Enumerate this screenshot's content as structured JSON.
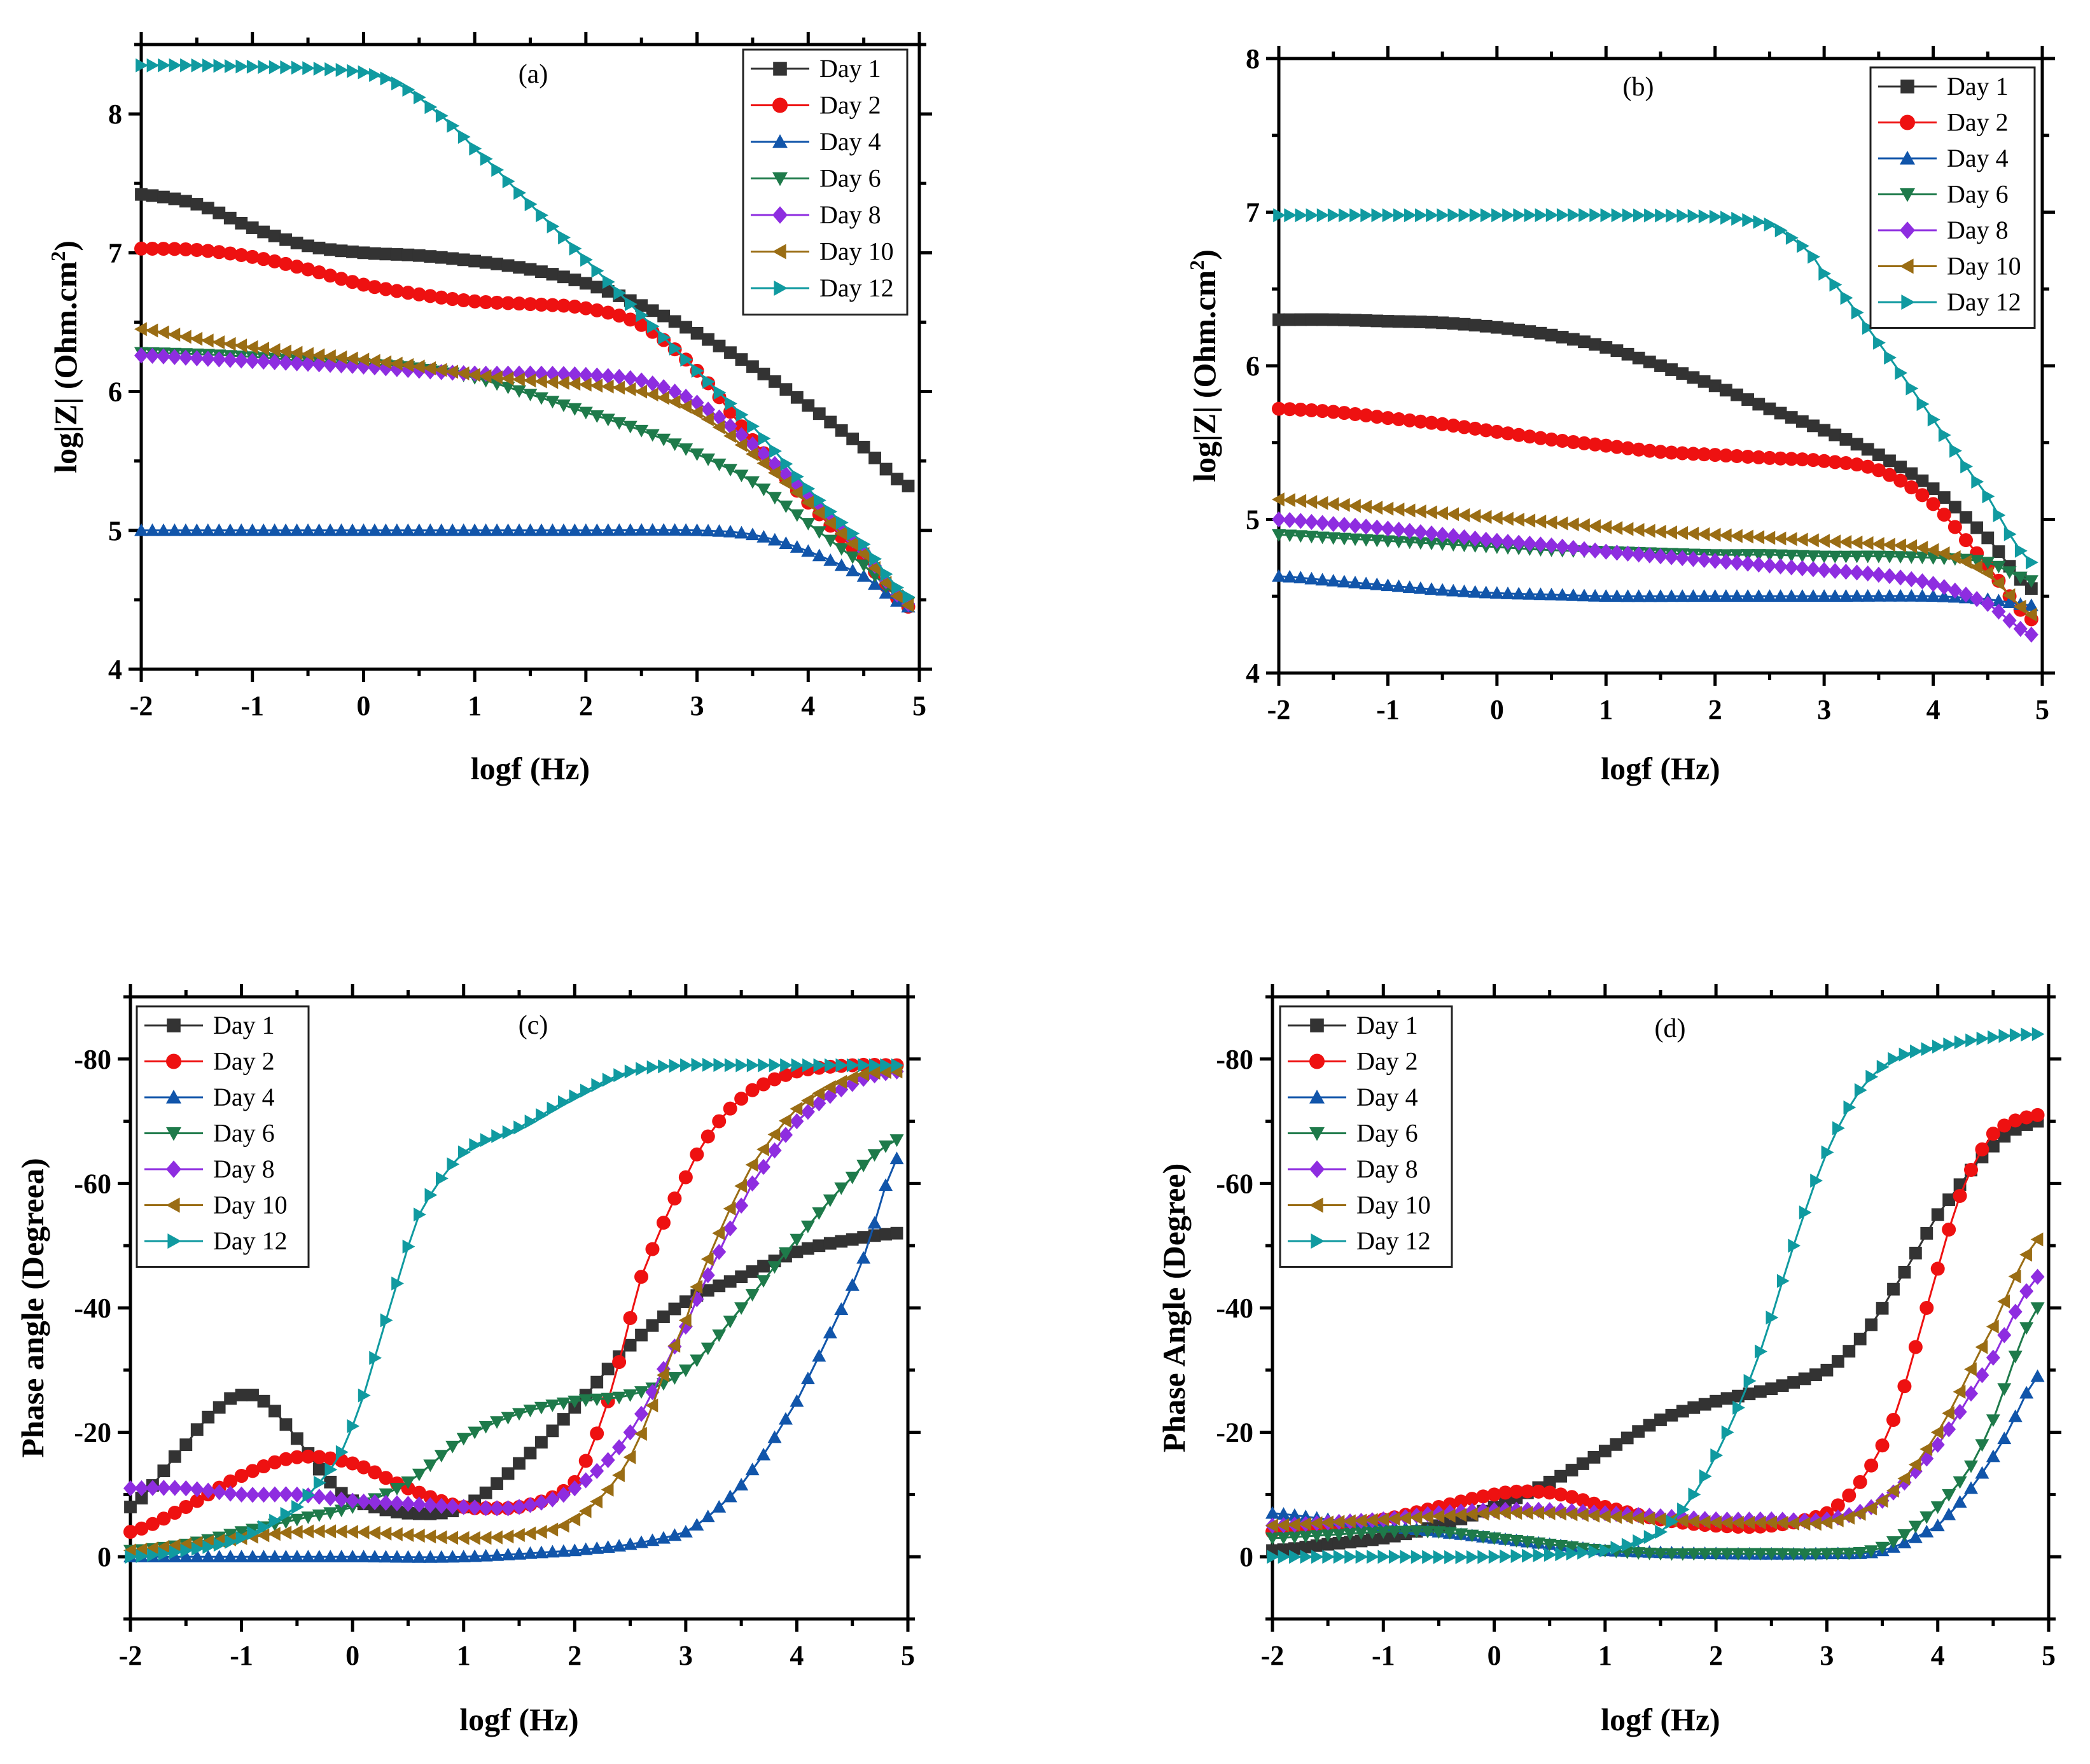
{
  "colors": {
    "Day 1": "#333333",
    "Day 2": "#ee1111",
    "Day 4": "#1155aa",
    "Day 6": "#1e7a4a",
    "Day 8": "#8e2de0",
    "Day 10": "#9a6d14",
    "Day 12": "#109aa0"
  },
  "markers": {
    "Day 1": "square",
    "Day 2": "circle",
    "Day 4": "triangle-up",
    "Day 6": "triangle-down",
    "Day 8": "diamond",
    "Day 10": "triangle-left",
    "Day 12": "triangle-right"
  },
  "chart_data": [
    {
      "id": "a",
      "type": "line",
      "title": "(a)",
      "xlabel": "logf (Hz)",
      "ylabel_main": "log|Z| (Ohm.cm",
      "ylabel_sup": "2",
      "ylabel_end": ")",
      "xlim": [
        -2,
        5
      ],
      "ylim": [
        4,
        8.5
      ],
      "xticks": [
        -2,
        -1,
        0,
        1,
        2,
        3,
        4,
        5
      ],
      "yticks": [
        4,
        5,
        6,
        7,
        8
      ],
      "legend_position": "top-right",
      "series": [
        {
          "name": "Day 1",
          "x": [
            -2,
            -1.5,
            -1,
            -0.5,
            0,
            0.5,
            1,
            1.5,
            2,
            2.5,
            3,
            3.5,
            4,
            4.5,
            4.9
          ],
          "y": [
            7.42,
            7.35,
            7.18,
            7.05,
            7.0,
            6.98,
            6.94,
            6.88,
            6.78,
            6.62,
            6.42,
            6.18,
            5.9,
            5.6,
            5.32
          ]
        },
        {
          "name": "Day 2",
          "x": [
            -2,
            -1.5,
            -1,
            -0.5,
            0,
            0.5,
            1,
            1.5,
            2,
            2.5,
            3,
            3.5,
            4,
            4.5,
            4.9
          ],
          "y": [
            7.03,
            7.02,
            6.97,
            6.88,
            6.77,
            6.7,
            6.65,
            6.63,
            6.6,
            6.48,
            6.15,
            5.65,
            5.2,
            4.8,
            4.45
          ]
        },
        {
          "name": "Day 4",
          "x": [
            -2,
            -1,
            0,
            1,
            2,
            3,
            3.5,
            4,
            4.5,
            4.9
          ],
          "y": [
            5.0,
            5.0,
            5.0,
            5.0,
            5.0,
            5.0,
            4.97,
            4.85,
            4.67,
            4.45
          ]
        },
        {
          "name": "Day 6",
          "x": [
            -2,
            -1.5,
            -1,
            -0.5,
            0,
            0.5,
            1,
            1.5,
            2,
            2.5,
            3,
            3.5,
            4,
            4.5,
            4.9
          ],
          "y": [
            6.28,
            6.27,
            6.25,
            6.22,
            6.2,
            6.17,
            6.1,
            5.98,
            5.85,
            5.72,
            5.55,
            5.35,
            5.05,
            4.75,
            4.48
          ]
        },
        {
          "name": "Day 8",
          "x": [
            -2,
            -1.5,
            -1,
            -0.5,
            0,
            0.5,
            1,
            1.5,
            2,
            2.5,
            3,
            3.5,
            4,
            4.5,
            4.9
          ],
          "y": [
            6.26,
            6.24,
            6.22,
            6.2,
            6.18,
            6.15,
            6.13,
            6.13,
            6.12,
            6.08,
            5.92,
            5.62,
            5.25,
            4.85,
            4.47
          ]
        },
        {
          "name": "Day 10",
          "x": [
            -2,
            -1.5,
            -1,
            -0.5,
            0,
            0.5,
            1,
            1.5,
            2,
            2.5,
            3,
            3.5,
            4,
            4.5,
            4.9
          ],
          "y": [
            6.45,
            6.38,
            6.32,
            6.27,
            6.23,
            6.18,
            6.12,
            6.08,
            6.05,
            6.0,
            5.85,
            5.55,
            5.2,
            4.83,
            4.46
          ]
        },
        {
          "name": "Day 12",
          "x": [
            -2,
            -1.5,
            -1,
            -0.5,
            0,
            0.3,
            0.6,
            1,
            1.5,
            2,
            2.5,
            3,
            3.5,
            4,
            4.5,
            4.9
          ],
          "y": [
            8.35,
            8.35,
            8.34,
            8.33,
            8.3,
            8.22,
            8.05,
            7.75,
            7.35,
            6.95,
            6.55,
            6.15,
            5.75,
            5.3,
            4.9,
            4.52
          ]
        }
      ]
    },
    {
      "id": "b",
      "type": "line",
      "title": "(b)",
      "xlabel": "logf (Hz)",
      "ylabel_main": "log|Z| (Ohm.cm",
      "ylabel_sup": "2",
      "ylabel_end": ")",
      "xlim": [
        -2,
        5
      ],
      "ylim": [
        4,
        8
      ],
      "xticks": [
        -2,
        -1,
        0,
        1,
        2,
        3,
        4,
        5
      ],
      "yticks": [
        4,
        5,
        6,
        7,
        8
      ],
      "legend_position": "top-right",
      "series": [
        {
          "name": "Day 1",
          "x": [
            -2,
            -1.5,
            -1,
            -0.5,
            0,
            0.5,
            1,
            1.5,
            2,
            2.5,
            3,
            3.5,
            4,
            4.5,
            4.9
          ],
          "y": [
            6.3,
            6.3,
            6.29,
            6.28,
            6.25,
            6.2,
            6.12,
            6.0,
            5.87,
            5.72,
            5.58,
            5.42,
            5.2,
            4.88,
            4.55
          ]
        },
        {
          "name": "Day 2",
          "x": [
            -2,
            -1.5,
            -1,
            -0.5,
            0,
            0.5,
            1,
            1.5,
            2,
            2.5,
            3,
            3.5,
            4,
            4.5,
            4.9
          ],
          "y": [
            5.72,
            5.7,
            5.66,
            5.62,
            5.57,
            5.52,
            5.48,
            5.44,
            5.42,
            5.4,
            5.38,
            5.32,
            5.1,
            4.7,
            4.35
          ]
        },
        {
          "name": "Day 4",
          "x": [
            -2,
            -1.5,
            -1,
            -0.5,
            0,
            0.5,
            1,
            2,
            3,
            4,
            4.5,
            4.9
          ],
          "y": [
            4.63,
            4.6,
            4.57,
            4.54,
            4.52,
            4.51,
            4.5,
            4.5,
            4.5,
            4.5,
            4.48,
            4.44
          ]
        },
        {
          "name": "Day 6",
          "x": [
            -2,
            -1.5,
            -1,
            -0.5,
            0,
            0.5,
            1,
            1.5,
            2,
            2.5,
            3,
            3.5,
            4,
            4.5,
            4.9
          ],
          "y": [
            4.9,
            4.88,
            4.86,
            4.84,
            4.82,
            4.8,
            4.79,
            4.78,
            4.77,
            4.77,
            4.76,
            4.76,
            4.75,
            4.72,
            4.6
          ]
        },
        {
          "name": "Day 8",
          "x": [
            -2,
            -1.5,
            -1,
            -0.5,
            0,
            0.5,
            1,
            1.5,
            2,
            2.5,
            3,
            3.5,
            4,
            4.5,
            4.9
          ],
          "y": [
            5.0,
            4.97,
            4.94,
            4.9,
            4.86,
            4.83,
            4.79,
            4.76,
            4.73,
            4.7,
            4.67,
            4.64,
            4.58,
            4.45,
            4.25
          ]
        },
        {
          "name": "Day 10",
          "x": [
            -2,
            -1.5,
            -1,
            -0.5,
            0,
            0.5,
            1,
            1.5,
            2,
            2.5,
            3,
            3.5,
            4,
            4.5,
            4.9
          ],
          "y": [
            5.13,
            5.1,
            5.07,
            5.04,
            5.01,
            4.98,
            4.95,
            4.92,
            4.9,
            4.88,
            4.86,
            4.84,
            4.8,
            4.65,
            4.38
          ]
        },
        {
          "name": "Day 12",
          "x": [
            -2,
            -1,
            0,
            1,
            2,
            2.5,
            2.8,
            3,
            3.5,
            4,
            4.5,
            4.9
          ],
          "y": [
            6.98,
            6.98,
            6.98,
            6.98,
            6.97,
            6.92,
            6.78,
            6.6,
            6.15,
            5.65,
            5.15,
            4.72
          ]
        }
      ]
    },
    {
      "id": "c",
      "type": "line",
      "title": "(c)",
      "xlabel": "logf (Hz)",
      "ylabel_main": "Phase angle (Degreea)",
      "ylabel_sup": "",
      "ylabel_end": "",
      "xlim": [
        -2,
        5
      ],
      "ylim": [
        10,
        -90
      ],
      "xticks": [
        -2,
        -1,
        0,
        1,
        2,
        3,
        4,
        5
      ],
      "yticks": [
        0,
        -20,
        -40,
        -60,
        -80
      ],
      "legend_position": "top-left",
      "series": [
        {
          "name": "Day 1",
          "x": [
            -2,
            -1.5,
            -1.2,
            -1,
            -0.8,
            -0.5,
            -0.2,
            0,
            0.5,
            1,
            1.5,
            2,
            2.5,
            3,
            3.5,
            4,
            4.5,
            4.9
          ],
          "y": [
            -8,
            -18,
            -24,
            -26,
            -25,
            -19,
            -12,
            -9,
            -7,
            -8,
            -15,
            -24,
            -34,
            -41,
            -45,
            -49,
            -51,
            -52
          ]
        },
        {
          "name": "Day 2",
          "x": [
            -2,
            -1.5,
            -1,
            -0.5,
            0,
            0.5,
            1,
            1.5,
            2,
            2.3,
            2.6,
            3,
            3.3,
            3.6,
            4,
            4.5,
            4.9
          ],
          "y": [
            -4,
            -8,
            -13,
            -16,
            -15,
            -11,
            -8,
            -8,
            -12,
            -25,
            -45,
            -61,
            -70,
            -75,
            -78,
            -79,
            -79
          ]
        },
        {
          "name": "Day 4",
          "x": [
            -2,
            -1,
            0,
            1,
            2,
            2.5,
            3,
            3.3,
            3.6,
            4,
            4.3,
            4.6,
            4.9
          ],
          "y": [
            0,
            0,
            0,
            0,
            -1,
            -2,
            -4,
            -8,
            -14,
            -25,
            -36,
            -48,
            -64
          ]
        },
        {
          "name": "Day 6",
          "x": [
            -2,
            -1.5,
            -1,
            -0.5,
            0,
            0.5,
            1,
            1.5,
            2,
            2.5,
            3,
            3.5,
            4,
            4.5,
            4.9
          ],
          "y": [
            -1,
            -2,
            -4,
            -6,
            -8,
            -12,
            -19,
            -23,
            -25,
            -26,
            -30,
            -40,
            -51,
            -61,
            -67
          ]
        },
        {
          "name": "Day 8",
          "x": [
            -2,
            -1.5,
            -1,
            -0.5,
            0,
            0.5,
            1,
            1.5,
            2,
            2.5,
            3,
            3.3,
            3.6,
            4,
            4.5,
            4.9
          ],
          "y": [
            -11,
            -11,
            -10,
            -10,
            -9,
            -8.5,
            -8,
            -8,
            -11,
            -20,
            -37,
            -49,
            -60,
            -70,
            -76,
            -78
          ]
        },
        {
          "name": "Day 10",
          "x": [
            -2,
            -1.5,
            -1,
            -0.5,
            0,
            0.5,
            1,
            1.5,
            2,
            2.5,
            3,
            3.3,
            3.6,
            4,
            4.5,
            4.9
          ],
          "y": [
            -1,
            -2,
            -3,
            -4,
            -4,
            -3.5,
            -3,
            -3.5,
            -6,
            -16,
            -38,
            -52,
            -63,
            -72,
            -77,
            -78
          ]
        },
        {
          "name": "Day 12",
          "x": [
            -2,
            -1.5,
            -1,
            -0.5,
            -0.2,
            0,
            0.3,
            0.6,
            1,
            1.5,
            2,
            2.5,
            3,
            3.5,
            4,
            4.5,
            4.9
          ],
          "y": [
            0,
            -1,
            -3,
            -8,
            -14,
            -21,
            -38,
            -55,
            -65,
            -69,
            -74,
            -78,
            -79,
            -79,
            -79,
            -79,
            -79
          ]
        }
      ]
    },
    {
      "id": "d",
      "type": "line",
      "title": "(d)",
      "xlabel": "logf (Hz)",
      "ylabel_main": "Phase Angle (Degree)",
      "ylabel_sup": "",
      "ylabel_end": "",
      "xlim": [
        -2,
        5
      ],
      "ylim": [
        10,
        -90
      ],
      "xticks": [
        -2,
        -1,
        0,
        1,
        2,
        3,
        4,
        5
      ],
      "yticks": [
        0,
        -20,
        -40,
        -60,
        -80
      ],
      "legend_position": "top-left",
      "series": [
        {
          "name": "Day 1",
          "x": [
            -2,
            -1.5,
            -1,
            -0.5,
            0,
            0.5,
            1,
            1.5,
            2,
            2.5,
            3,
            3.3,
            3.6,
            4,
            4.5,
            4.9
          ],
          "y": [
            -1,
            -2,
            -3,
            -5,
            -8,
            -12,
            -17,
            -22,
            -25,
            -27,
            -30,
            -35,
            -43,
            -55,
            -66,
            -70
          ]
        },
        {
          "name": "Day 2",
          "x": [
            -2,
            -1.5,
            -1,
            -0.5,
            0,
            0.3,
            0.6,
            1,
            1.5,
            2,
            2.5,
            3,
            3.3,
            3.6,
            3.9,
            4.2,
            4.5,
            4.9
          ],
          "y": [
            -4,
            -5,
            -6,
            -8,
            -10,
            -10.5,
            -10,
            -8,
            -6,
            -5,
            -5,
            -7,
            -12,
            -22,
            -40,
            -58,
            -68,
            -71
          ]
        },
        {
          "name": "Day 4",
          "x": [
            -2,
            -1.5,
            -1,
            -0.5,
            0,
            0.5,
            1,
            2,
            3,
            3.5,
            4,
            4.3,
            4.6,
            4.9
          ],
          "y": [
            -7,
            -6,
            -5,
            -4,
            -3,
            -2,
            -1,
            -0.5,
            -0.5,
            -1,
            -5,
            -11,
            -19,
            -29
          ]
        },
        {
          "name": "Day 6",
          "x": [
            -2,
            -1.5,
            -1,
            -0.5,
            0,
            0.5,
            1,
            1.5,
            2,
            2.5,
            3,
            3.5,
            4,
            4.4,
            4.9
          ],
          "y": [
            -3,
            -3.5,
            -4,
            -4,
            -3,
            -2,
            -1,
            -0.5,
            -0.5,
            -0.5,
            -0.5,
            -1.5,
            -8,
            -18,
            -40
          ]
        },
        {
          "name": "Day 8",
          "x": [
            -2,
            -1.5,
            -1,
            -0.5,
            0,
            0.5,
            1,
            1.5,
            2,
            2.5,
            3,
            3.5,
            4,
            4.5,
            4.9
          ],
          "y": [
            -5,
            -5.5,
            -6,
            -7,
            -7.5,
            -7.5,
            -7,
            -6.5,
            -6,
            -6,
            -6,
            -9,
            -18,
            -32,
            -45
          ]
        },
        {
          "name": "Day 10",
          "x": [
            -2,
            -1.5,
            -1,
            -0.5,
            0,
            0.5,
            1,
            1.5,
            2,
            2.5,
            3,
            3.5,
            4,
            4.5,
            4.9
          ],
          "y": [
            -5,
            -5.5,
            -6,
            -6.5,
            -7,
            -7,
            -6.5,
            -6,
            -5.5,
            -5.5,
            -5.5,
            -9,
            -20,
            -37,
            -51
          ]
        },
        {
          "name": "Day 12",
          "x": [
            -2,
            -1,
            0,
            1,
            1.5,
            1.8,
            2.1,
            2.4,
            2.7,
            3,
            3.3,
            3.6,
            4,
            4.5,
            4.9
          ],
          "y": [
            0,
            0,
            0,
            -1,
            -4,
            -10,
            -20,
            -33,
            -50,
            -65,
            -75,
            -80,
            -82,
            -83.5,
            -84
          ]
        }
      ]
    }
  ]
}
